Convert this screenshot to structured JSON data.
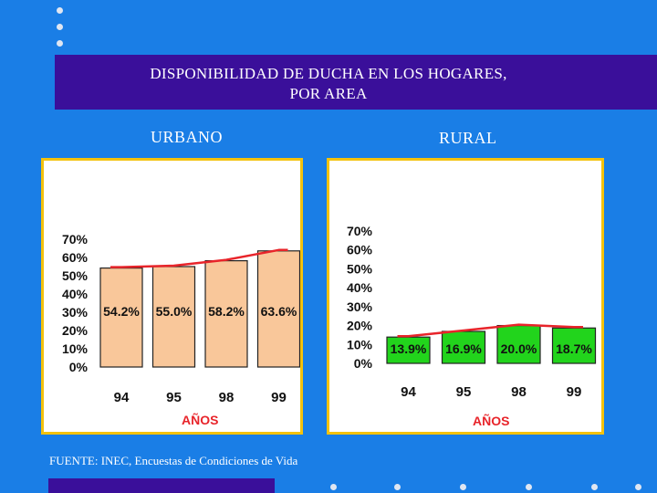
{
  "title_line1": "DISPONIBILIDAD DE DUCHA EN LOS HOGARES,",
  "title_line2": "POR AREA",
  "footer": "FUENTE: INEC, Encuestas de Condiciones de Vida",
  "colors": {
    "background": "#1a7ee6",
    "band": "#3a0f9a",
    "panel_border": "#f4c20d",
    "urbano_bar": "#f9c79a",
    "rural_bar": "#22d41c",
    "trend": "#e8242a",
    "axis_title": "#e8242a"
  },
  "chart_data": [
    {
      "type": "bar",
      "panel_label": "URBANO",
      "categories": [
        "94",
        "95",
        "98",
        "99"
      ],
      "values": [
        54.2,
        55.0,
        58.2,
        63.6
      ],
      "value_labels": [
        "54.2%",
        "55.0%",
        "58.2%",
        "63.6%"
      ],
      "yticks": [
        "0%",
        "10%",
        "20%",
        "30%",
        "40%",
        "50%",
        "60%",
        "70%"
      ],
      "ylim": [
        0,
        70
      ],
      "xlabel": "AÑOS",
      "trendline": true
    },
    {
      "type": "bar",
      "panel_label": "RURAL",
      "categories": [
        "94",
        "95",
        "98",
        "99"
      ],
      "values": [
        13.9,
        16.9,
        20.0,
        18.7
      ],
      "value_labels": [
        "13.9%",
        "16.9%",
        "20.0%",
        "18.7%"
      ],
      "yticks": [
        "0%",
        "10%",
        "20%",
        "30%",
        "40%",
        "50%",
        "60%",
        "70%"
      ],
      "ylim": [
        0,
        70
      ],
      "xlabel": "AÑOS",
      "trendline": true
    }
  ]
}
